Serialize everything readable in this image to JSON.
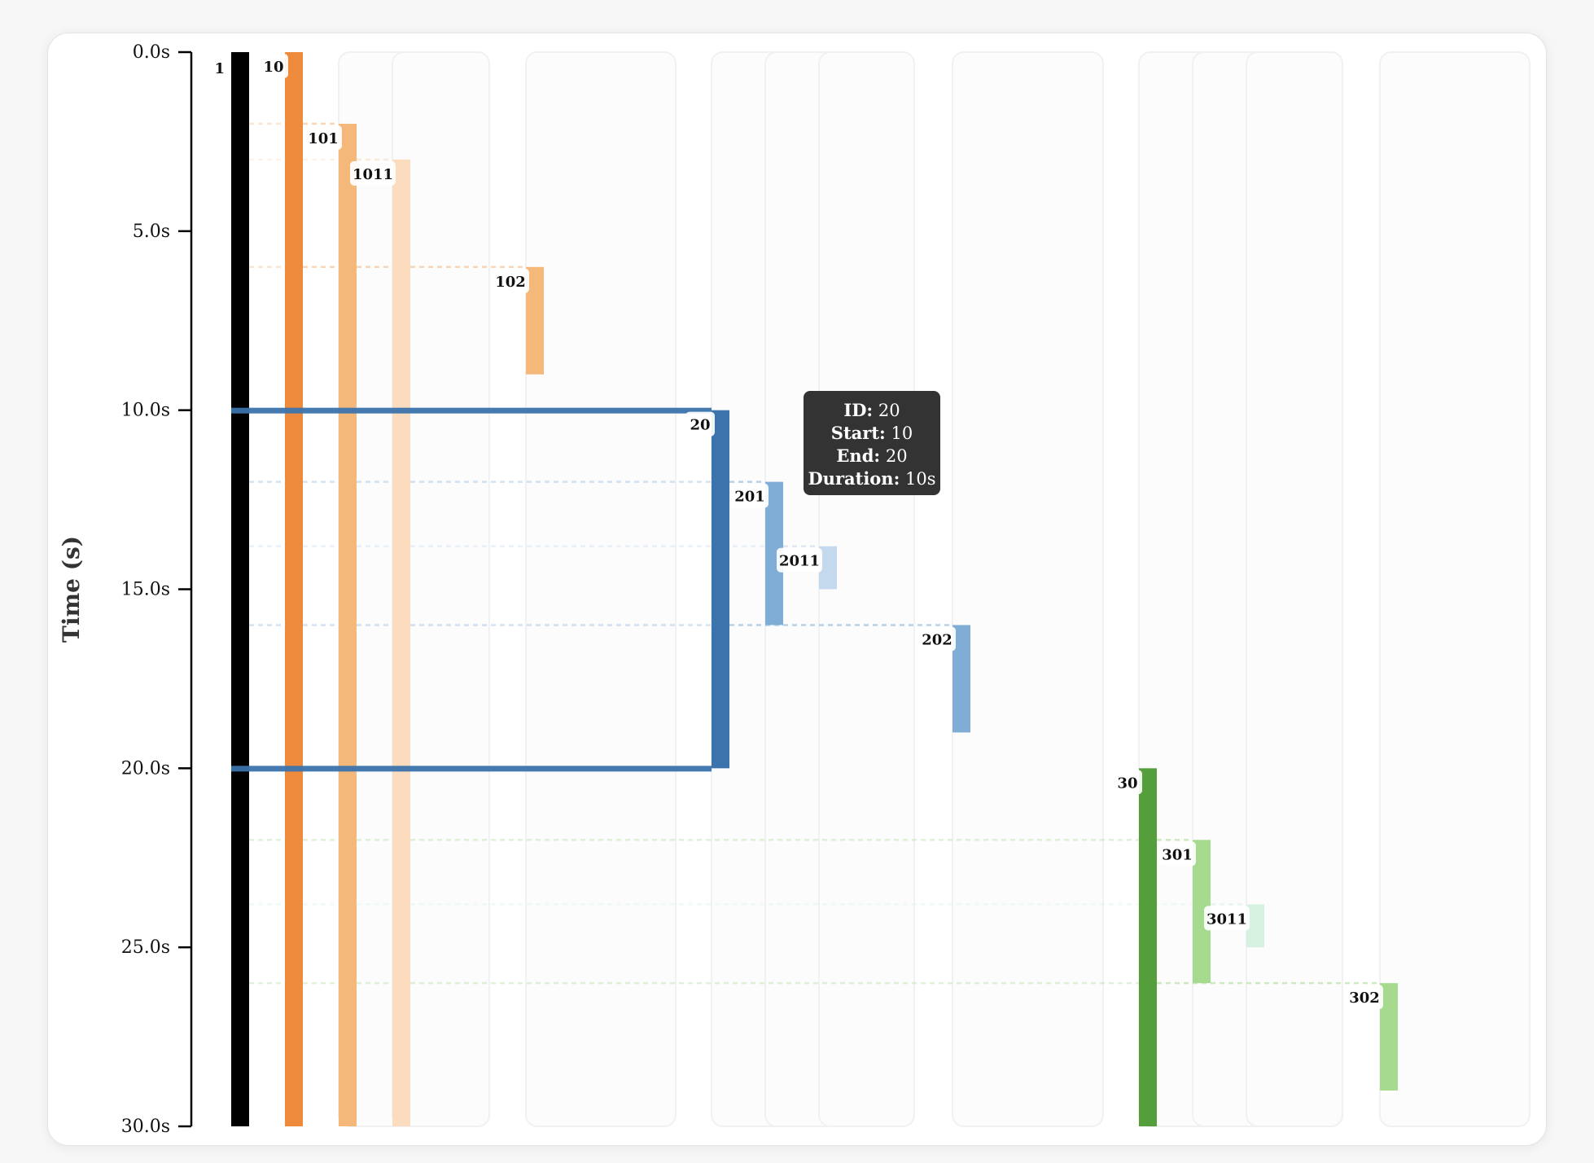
{
  "chart_data": {
    "type": "timeline",
    "ylabel": "Time (s)",
    "ylim": [
      0,
      30
    ],
    "yticks": [
      0,
      5,
      10,
      15,
      20,
      25,
      30
    ],
    "ytick_labels": [
      "0.0s",
      "5.0s",
      "10.0s",
      "15.0s",
      "20.0s",
      "25.0s",
      "30.0s"
    ],
    "spans": [
      {
        "id": "1",
        "start": 0,
        "end": 30,
        "color": "#000000"
      },
      {
        "id": "10",
        "start": 0,
        "end": 30,
        "color": "#ee8a3c"
      },
      {
        "id": "101",
        "start": 2,
        "end": 30,
        "color": "#f5b87b"
      },
      {
        "id": "1011",
        "start": 3,
        "end": 30,
        "color": "#fbdcbf"
      },
      {
        "id": "102",
        "start": 6,
        "end": 9,
        "color": "#f5b87b"
      },
      {
        "id": "20",
        "start": 10,
        "end": 20,
        "color": "#3b73ad"
      },
      {
        "id": "201",
        "start": 12,
        "end": 16,
        "color": "#7fadd6"
      },
      {
        "id": "2011",
        "start": 13.8,
        "end": 15,
        "color": "#c5d9ee"
      },
      {
        "id": "202",
        "start": 16,
        "end": 19,
        "color": "#7fadd6"
      },
      {
        "id": "30",
        "start": 20,
        "end": 30,
        "color": "#559e3c"
      },
      {
        "id": "301",
        "start": 22,
        "end": 26,
        "color": "#a6db8f"
      },
      {
        "id": "3011",
        "start": 23.8,
        "end": 25,
        "color": "#d6f1e0"
      },
      {
        "id": "302",
        "start": 26,
        "end": 29,
        "color": "#a6db8f"
      }
    ],
    "highlighted_id": "20"
  },
  "tooltip": {
    "id_label": "ID:",
    "id_value": "20",
    "start_label": "Start:",
    "start_value": "10",
    "end_label": "End:",
    "end_value": "20",
    "duration_label": "Duration:",
    "duration_value": "10s"
  }
}
